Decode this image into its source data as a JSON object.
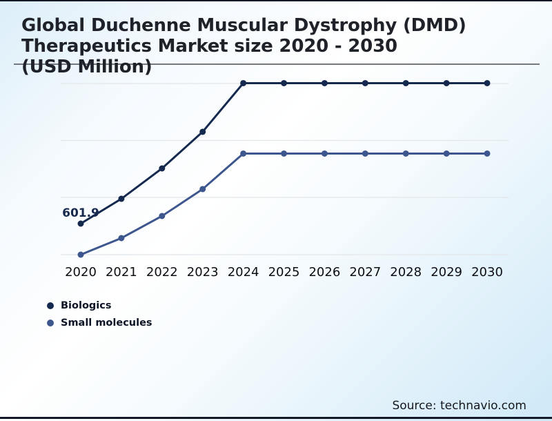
{
  "title": {
    "lines": [
      "Global Duchenne Muscular Dystrophy (DMD)",
      "Therapeutics Market size 2020 - 2030",
      "(USD Million)"
    ]
  },
  "annotation": {
    "text": "601.9"
  },
  "source": {
    "text": "Source: technavio.com"
  },
  "legend": {
    "items": [
      {
        "label": "Biologics",
        "color": "#15294e"
      },
      {
        "label": "Small molecules",
        "color": "#3d568e"
      }
    ]
  },
  "colors": {
    "biologics_line": "#15294e",
    "small_molecules_line": "#3d568e",
    "gridline": "#e2e6e9",
    "title_rule": "#75797e",
    "page_border": "#131826"
  },
  "chart_data": {
    "type": "line",
    "title": "Global Duchenne Muscular Dystrophy (DMD) Therapeutics Market size 2020 - 2030 (USD Million)",
    "ylabel": "USD Million",
    "x": [
      2020,
      2021,
      2022,
      2023,
      2024,
      2025,
      2026,
      2027,
      2028,
      2029,
      2030
    ],
    "series": [
      {
        "name": "Biologics",
        "color": "#15294e",
        "values": [
          601.9,
          1083,
          1672,
          2381,
          3324,
          3324,
          3324,
          3324,
          3324,
          3324,
          3324
        ]
      },
      {
        "name": "Small molecules",
        "color": "#3d568e",
        "values": [
          0,
          321,
          749,
          1271,
          1960,
          1960,
          1960,
          1960,
          1960,
          1960,
          1960
        ]
      }
    ],
    "data_labels": [
      {
        "series": "Biologics",
        "x": 2020,
        "text": "601.9"
      }
    ],
    "y_axis_labels_visible": false,
    "grid": "horizontal",
    "legend_position": "bottom-left"
  }
}
